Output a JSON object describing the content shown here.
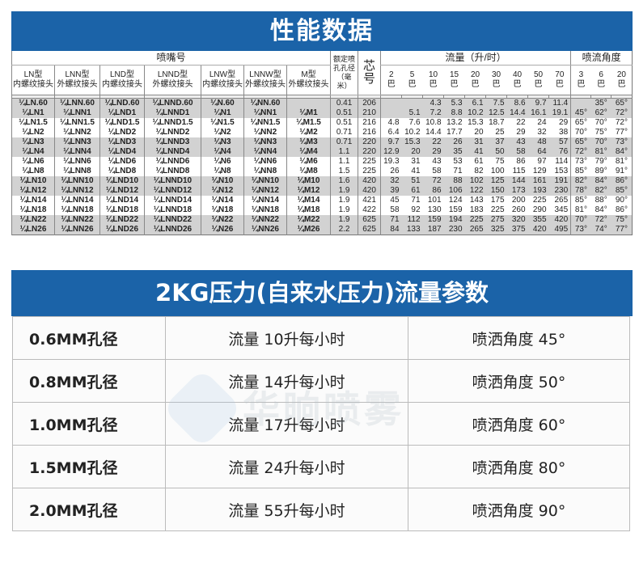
{
  "performance": {
    "title": "性能数据",
    "nozzle_header": "喷嘴号",
    "types": [
      {
        "name": "LN型",
        "thread": "内螺纹接头"
      },
      {
        "name": "LNN型",
        "thread": "外螺纹接头"
      },
      {
        "name": "LND型",
        "thread": "内螺纹接头"
      },
      {
        "name": "LNND型",
        "thread": "外螺纹接头"
      },
      {
        "name": "LNW型",
        "thread": "内螺纹接头"
      },
      {
        "name": "LNNW型",
        "thread": "外螺纹接头"
      },
      {
        "name": "M型",
        "thread": "外螺纹接头"
      }
    ],
    "orifice_header": "额定喷孔孔径（毫米）",
    "core_header": "芯号",
    "flow_header": "流量（升/时）",
    "flow_pressures": [
      {
        "v": "2",
        "u": "巴"
      },
      {
        "v": "5",
        "u": "巴"
      },
      {
        "v": "10",
        "u": "巴"
      },
      {
        "v": "15",
        "u": "巴"
      },
      {
        "v": "20",
        "u": "巴"
      },
      {
        "v": "30",
        "u": "巴"
      },
      {
        "v": "40",
        "u": "巴"
      },
      {
        "v": "50",
        "u": "巴"
      },
      {
        "v": "70",
        "u": "巴"
      }
    ],
    "angle_header": "喷流角度",
    "angle_pressures": [
      {
        "v": "3",
        "u": "巴"
      },
      {
        "v": "6",
        "u": "巴"
      },
      {
        "v": "20",
        "u": "巴"
      }
    ],
    "rows": [
      {
        "models": [
          "¼LN.60",
          "¼LNN.60",
          "¼LND.60",
          "¼LNND.60",
          "¼N.60",
          "¼NN.60",
          ""
        ],
        "orifice": "0.41",
        "core": "206",
        "flow": [
          "",
          "",
          "4.3",
          "5.3",
          "6.1",
          "7.5",
          "8.6",
          "9.7",
          "11.4"
        ],
        "angle": [
          "",
          "35°",
          "65°"
        ]
      },
      {
        "models": [
          "¼LN1",
          "¼LNN1",
          "¼LND1",
          "¼LNND1",
          "¼N1",
          "¼NN1",
          "¼M1"
        ],
        "orifice": "0.51",
        "core": "210",
        "flow": [
          "",
          "5.1",
          "7.2",
          "8.8",
          "10.2",
          "12.5",
          "14.4",
          "16.1",
          "19.1"
        ],
        "angle": [
          "45°",
          "62°",
          "72°"
        ]
      },
      {
        "models": [
          "¼LN1.5",
          "¼LNN1.5",
          "¼LND1.5",
          "¼LNND1.5",
          "¼N1.5",
          "¼NN1.5",
          "¼M1.5"
        ],
        "orifice": "0.51",
        "core": "216",
        "flow": [
          "4.8",
          "7.6",
          "10.8",
          "13.2",
          "15.3",
          "18.7",
          "22",
          "24",
          "29"
        ],
        "angle": [
          "65°",
          "70°",
          "72°"
        ]
      },
      {
        "models": [
          "¼LN2",
          "¼LNN2",
          "¼LND2",
          "¼LNND2",
          "¼N2",
          "¼NN2",
          "¼M2"
        ],
        "orifice": "0.71",
        "core": "216",
        "flow": [
          "6.4",
          "10.2",
          "14.4",
          "17.7",
          "20",
          "25",
          "29",
          "32",
          "38"
        ],
        "angle": [
          "70°",
          "75°",
          "77°"
        ]
      },
      {
        "models": [
          "¼LN3",
          "¼LNN3",
          "¼LND3",
          "¼LNND3",
          "¼N3",
          "¼NN3",
          "¼M3"
        ],
        "orifice": "0.71",
        "core": "220",
        "flow": [
          "9.7",
          "15.3",
          "22",
          "26",
          "31",
          "37",
          "43",
          "48",
          "57"
        ],
        "angle": [
          "65°",
          "70°",
          "73°"
        ]
      },
      {
        "models": [
          "¼LN4",
          "¼LNN4",
          "¼LND4",
          "¼LNND4",
          "¼N4",
          "¼NN4",
          "¼M4"
        ],
        "orifice": "1.1",
        "core": "220",
        "flow": [
          "12.9",
          "20",
          "29",
          "35",
          "41",
          "50",
          "58",
          "64",
          "76"
        ],
        "angle": [
          "72°",
          "81°",
          "84°"
        ]
      },
      {
        "models": [
          "¼LN6",
          "¼LNN6",
          "¼LND6",
          "¼LNND6",
          "¼N6",
          "¼NN6",
          "¼M6"
        ],
        "orifice": "1.1",
        "core": "225",
        "flow": [
          "19.3",
          "31",
          "43",
          "53",
          "61",
          "75",
          "86",
          "97",
          "114"
        ],
        "angle": [
          "73°",
          "79°",
          "81°"
        ]
      },
      {
        "models": [
          "¼LN8",
          "¼LNN8",
          "¼LND8",
          "¼LNND8",
          "¼N8",
          "¼NN8",
          "¼M8"
        ],
        "orifice": "1.5",
        "core": "225",
        "flow": [
          "26",
          "41",
          "58",
          "71",
          "82",
          "100",
          "115",
          "129",
          "153"
        ],
        "angle": [
          "85°",
          "89°",
          "91°"
        ]
      },
      {
        "models": [
          "¼LN10",
          "¼LNN10",
          "¼LND10",
          "¼LNND10",
          "¼N10",
          "¼NN10",
          "¼M10"
        ],
        "orifice": "1.6",
        "core": "420",
        "flow": [
          "32",
          "51",
          "72",
          "88",
          "102",
          "125",
          "144",
          "161",
          "191"
        ],
        "angle": [
          "82°",
          "84°",
          "86°"
        ]
      },
      {
        "models": [
          "¼LN12",
          "¼LNN12",
          "¼LND12",
          "¼LNND12",
          "¼N12",
          "¼NN12",
          "¼M12"
        ],
        "orifice": "1.9",
        "core": "420",
        "flow": [
          "39",
          "61",
          "86",
          "106",
          "122",
          "150",
          "173",
          "193",
          "230"
        ],
        "angle": [
          "78°",
          "82°",
          "85°"
        ]
      },
      {
        "models": [
          "¼LN14",
          "¼LNN14",
          "¼LND14",
          "¼LNND14",
          "¼N14",
          "¼NN14",
          "¼M14"
        ],
        "orifice": "1.9",
        "core": "421",
        "flow": [
          "45",
          "71",
          "101",
          "124",
          "143",
          "175",
          "200",
          "225",
          "265"
        ],
        "angle": [
          "85°",
          "88°",
          "90°"
        ]
      },
      {
        "models": [
          "¼LN18",
          "¼LNN18",
          "¼LND18",
          "¼LNND18",
          "¼N18",
          "¼NN18",
          "¼M18"
        ],
        "orifice": "1.9",
        "core": "422",
        "flow": [
          "58",
          "92",
          "130",
          "159",
          "183",
          "225",
          "260",
          "290",
          "345"
        ],
        "angle": [
          "81°",
          "84°",
          "86°"
        ]
      },
      {
        "models": [
          "¼LN22",
          "¼LNN22",
          "¼LND22",
          "¼LNND22",
          "¼N22",
          "¼NN22",
          "¼M22"
        ],
        "orifice": "1.9",
        "core": "625",
        "flow": [
          "71",
          "112",
          "159",
          "194",
          "225",
          "275",
          "320",
          "355",
          "420"
        ],
        "angle": [
          "70°",
          "72°",
          "75°"
        ]
      },
      {
        "models": [
          "¼LN26",
          "¼LNN26",
          "¼LND26",
          "¼LNND26",
          "¼N26",
          "¼NN26",
          "¼M26"
        ],
        "orifice": "2.2",
        "core": "625",
        "flow": [
          "84",
          "133",
          "187",
          "230",
          "265",
          "325",
          "375",
          "420",
          "495"
        ],
        "angle": [
          "73°",
          "74°",
          "77°"
        ]
      }
    ]
  },
  "tap_water": {
    "title": "2KG压力(自来水压力)流量参数",
    "rows": [
      {
        "size": "0.6MM孔径",
        "flow": "流量 10升每小时",
        "angle": "喷洒角度  45°"
      },
      {
        "size": "0.8MM孔径",
        "flow": "流量 14升每小时",
        "angle": "喷洒角度  50°"
      },
      {
        "size": "1.0MM孔径",
        "flow": "流量 17升每小时",
        "angle": "喷洒角度  60°"
      },
      {
        "size": "1.5MM孔径",
        "flow": "流量 24升每小时",
        "angle": "喷洒角度  80°"
      },
      {
        "size": "2.0MM孔径",
        "flow": "流量 55升每小时",
        "angle": "喷洒角度  90°"
      }
    ]
  },
  "watermark": "华晌喷雾",
  "colors": {
    "banner": "#1b63a8",
    "row_shade": "#d2d2d2"
  }
}
